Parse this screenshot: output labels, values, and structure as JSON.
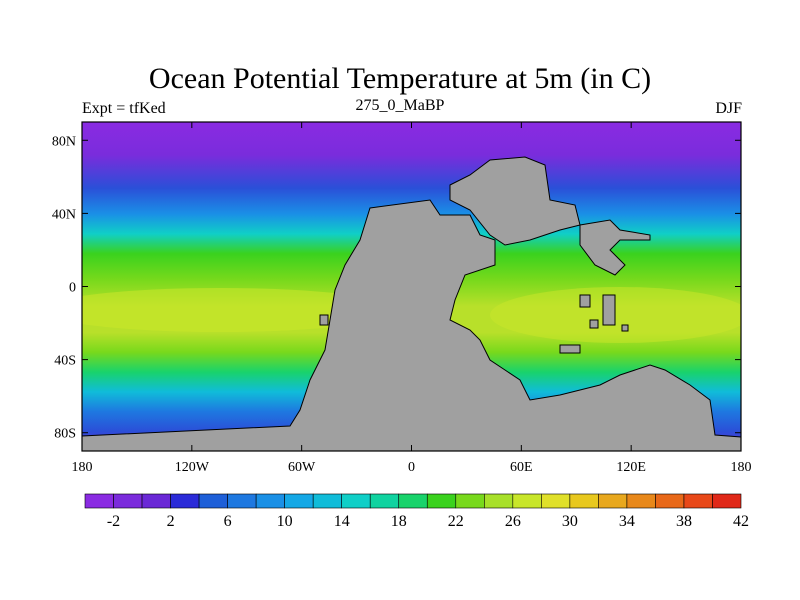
{
  "title": "Ocean Potential Temperature at 5m (in C)",
  "subtitle_left": "Expt = tfKed",
  "subtitle_center": "275_0_MaBP",
  "subtitle_right": "DJF",
  "colors": {
    "land": "#a0a0a0",
    "scale": [
      "#8a2be2",
      "#7b2bdc",
      "#6a28d6",
      "#2b2bd8",
      "#1e5fd8",
      "#1e78e0",
      "#1a90e6",
      "#14a8e6",
      "#10bcd9",
      "#10cfc7",
      "#10d3a0",
      "#19d36b",
      "#3ad21e",
      "#78d91c",
      "#a8e02a",
      "#c8e62a",
      "#e0e02a",
      "#e8c81e",
      "#e8a81e",
      "#e8881a",
      "#e86818",
      "#e84818",
      "#e02818"
    ]
  },
  "chart_data": {
    "type": "heatmap",
    "title": "Ocean Potential Temperature at 5m (in C)",
    "x_ticks": [
      "180",
      "120W",
      "60W",
      "0",
      "60E",
      "120E",
      "180"
    ],
    "y_ticks": [
      "80N",
      "40N",
      "0",
      "40S",
      "80S"
    ],
    "colorbar_labels": [
      "-2",
      "2",
      "6",
      "10",
      "14",
      "18",
      "22",
      "26",
      "30",
      "34",
      "38",
      "42"
    ],
    "xlim": [
      -180,
      180
    ],
    "ylim": [
      -90,
      90
    ]
  }
}
